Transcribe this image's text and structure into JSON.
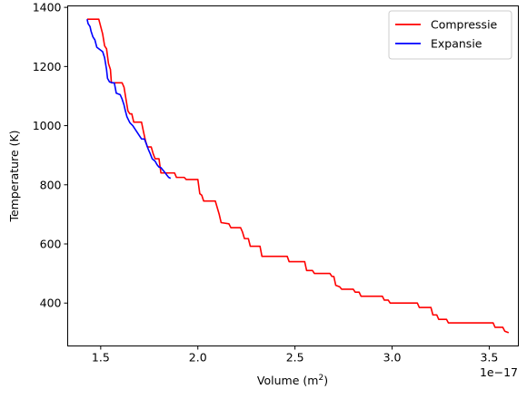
{
  "chart_data": {
    "type": "line",
    "xlabel": "Volume (m",
    "xlabel_sup": "2",
    "xlabel_suffix": ")",
    "ylabel": "Temperature (K)",
    "x_multiplier_label": "1e−17",
    "xlim": [
      1.33,
      3.65
    ],
    "ylim": [
      255,
      1405
    ],
    "x_ticks": [
      1.5,
      2.0,
      2.5,
      3.0,
      3.5
    ],
    "x_tick_labels": [
      "1.5",
      "2.0",
      "2.5",
      "3.0",
      "3.5"
    ],
    "y_ticks": [
      400,
      600,
      800,
      1000,
      1200,
      1400
    ],
    "y_tick_labels": [
      "400",
      "600",
      "800",
      "1000",
      "1200",
      "1400"
    ],
    "grid": false,
    "legend_position": "top-right",
    "series": [
      {
        "name": "Compressie",
        "color": "#ff0000",
        "points": [
          [
            1.43,
            1360
          ],
          [
            1.49,
            1360
          ],
          [
            1.51,
            1310
          ],
          [
            1.52,
            1270
          ],
          [
            1.53,
            1260
          ],
          [
            1.54,
            1210
          ],
          [
            1.55,
            1190
          ],
          [
            1.555,
            1145
          ],
          [
            1.61,
            1145
          ],
          [
            1.62,
            1130
          ],
          [
            1.63,
            1090
          ],
          [
            1.64,
            1050
          ],
          [
            1.65,
            1040
          ],
          [
            1.66,
            1040
          ],
          [
            1.67,
            1012
          ],
          [
            1.71,
            1012
          ],
          [
            1.72,
            980
          ],
          [
            1.73,
            950
          ],
          [
            1.74,
            928
          ],
          [
            1.76,
            928
          ],
          [
            1.77,
            905
          ],
          [
            1.78,
            888
          ],
          [
            1.8,
            888
          ],
          [
            1.81,
            840
          ],
          [
            1.88,
            840
          ],
          [
            1.89,
            825
          ],
          [
            1.93,
            825
          ],
          [
            1.94,
            818
          ],
          [
            2.0,
            818
          ],
          [
            2.01,
            770
          ],
          [
            2.02,
            765
          ],
          [
            2.03,
            745
          ],
          [
            2.09,
            745
          ],
          [
            2.11,
            700
          ],
          [
            2.12,
            672
          ],
          [
            2.16,
            668
          ],
          [
            2.17,
            655
          ],
          [
            2.22,
            655
          ],
          [
            2.23,
            640
          ],
          [
            2.24,
            618
          ],
          [
            2.26,
            618
          ],
          [
            2.27,
            592
          ],
          [
            2.32,
            592
          ],
          [
            2.33,
            558
          ],
          [
            2.46,
            558
          ],
          [
            2.47,
            540
          ],
          [
            2.55,
            540
          ],
          [
            2.56,
            510
          ],
          [
            2.59,
            510
          ],
          [
            2.6,
            500
          ],
          [
            2.68,
            500
          ],
          [
            2.69,
            490
          ],
          [
            2.7,
            490
          ],
          [
            2.71,
            460
          ],
          [
            2.73,
            455
          ],
          [
            2.74,
            447
          ],
          [
            2.8,
            447
          ],
          [
            2.81,
            437
          ],
          [
            2.83,
            437
          ],
          [
            2.84,
            423
          ],
          [
            2.95,
            423
          ],
          [
            2.96,
            410
          ],
          [
            2.98,
            410
          ],
          [
            2.99,
            400
          ],
          [
            3.13,
            400
          ],
          [
            3.14,
            385
          ],
          [
            3.2,
            385
          ],
          [
            3.21,
            360
          ],
          [
            3.23,
            360
          ],
          [
            3.24,
            345
          ],
          [
            3.28,
            345
          ],
          [
            3.29,
            333
          ],
          [
            3.52,
            333
          ],
          [
            3.53,
            318
          ],
          [
            3.57,
            318
          ],
          [
            3.58,
            305
          ],
          [
            3.6,
            300
          ]
        ]
      },
      {
        "name": "Expansie",
        "color": "#0000ff",
        "points": [
          [
            1.43,
            1360
          ],
          [
            1.435,
            1345
          ],
          [
            1.445,
            1335
          ],
          [
            1.45,
            1320
          ],
          [
            1.46,
            1300
          ],
          [
            1.47,
            1290
          ],
          [
            1.48,
            1265
          ],
          [
            1.5,
            1255
          ],
          [
            1.51,
            1250
          ],
          [
            1.52,
            1230
          ],
          [
            1.53,
            1190
          ],
          [
            1.535,
            1160
          ],
          [
            1.545,
            1148
          ],
          [
            1.56,
            1145
          ],
          [
            1.57,
            1145
          ],
          [
            1.58,
            1110
          ],
          [
            1.6,
            1105
          ],
          [
            1.61,
            1090
          ],
          [
            1.62,
            1070
          ],
          [
            1.625,
            1055
          ],
          [
            1.635,
            1030
          ],
          [
            1.65,
            1010
          ],
          [
            1.665,
            1000
          ],
          [
            1.675,
            990
          ],
          [
            1.69,
            975
          ],
          [
            1.7,
            965
          ],
          [
            1.71,
            955
          ],
          [
            1.725,
            955
          ],
          [
            1.735,
            938
          ],
          [
            1.745,
            920
          ],
          [
            1.755,
            905
          ],
          [
            1.765,
            888
          ],
          [
            1.78,
            880
          ],
          [
            1.79,
            868
          ],
          [
            1.8,
            860
          ],
          [
            1.81,
            858
          ],
          [
            1.82,
            850
          ],
          [
            1.83,
            842
          ],
          [
            1.84,
            833
          ],
          [
            1.85,
            825
          ],
          [
            1.86,
            822
          ]
        ]
      }
    ]
  }
}
